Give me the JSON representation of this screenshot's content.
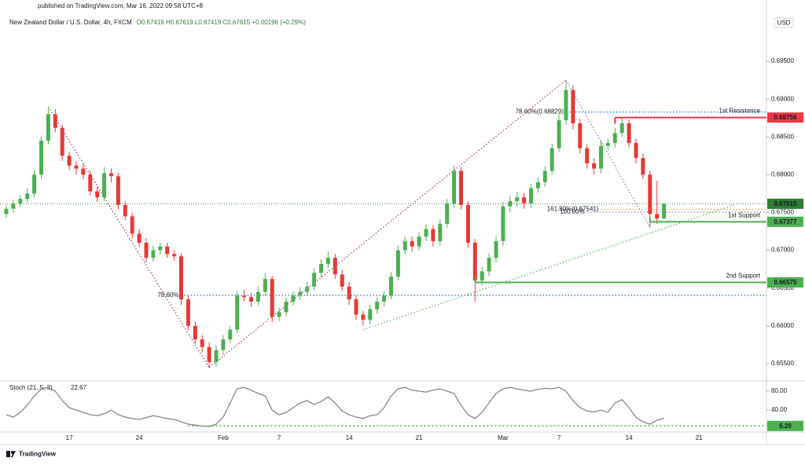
{
  "header": {
    "published": "published on TradingView.com, Mar 16, 2022 09:58 UTC+8"
  },
  "chart_data": {
    "type": "candlestick",
    "title": "New Zealand Dollar / U.S. Dollar, 4h, FXCM",
    "ohlc_summary": "O0.67419  H0.67619  L0.67419  C0.67615  +0.00196 (+0.29%)",
    "currency": "USD",
    "up_color": "#4caf50",
    "down_color": "#e53935",
    "categories": [
      null,
      null,
      null,
      null,
      null,
      null,
      null,
      null,
      null,
      "17",
      null,
      null,
      null,
      null,
      null,
      null,
      null,
      null,
      null,
      "24",
      null,
      null,
      null,
      null,
      null,
      null,
      null,
      null,
      null,
      null,
      null,
      "Feb",
      null,
      null,
      null,
      null,
      null,
      null,
      null,
      "7",
      null,
      null,
      null,
      null,
      null,
      null,
      null,
      null,
      null,
      "14",
      null,
      null,
      null,
      null,
      null,
      null,
      null,
      null,
      null,
      "21",
      null,
      null,
      null,
      null,
      null,
      null,
      null,
      null,
      null,
      null,
      null,
      "Mar",
      null,
      null,
      null,
      null,
      null,
      null,
      null,
      "7",
      null,
      null,
      null,
      null,
      null,
      null,
      null,
      null,
      null,
      "14",
      null,
      null,
      null,
      null,
      null,
      null,
      null,
      null,
      null,
      "21",
      null,
      null,
      null,
      null,
      null,
      null,
      null,
      null,
      null
    ],
    "open": [
      0.6748,
      0.6755,
      0.6762,
      0.6768,
      0.6775,
      0.68,
      0.6845,
      0.688,
      0.6862,
      0.6825,
      0.6812,
      0.6808,
      0.68,
      0.6778,
      0.677,
      0.6802,
      0.6798,
      0.676,
      0.6745,
      0.6722,
      0.671,
      0.669,
      0.67,
      0.6705,
      0.6695,
      0.6692,
      0.6635,
      0.66,
      0.6582,
      0.6572,
      0.6552,
      0.6568,
      0.6582,
      0.6595,
      0.664,
      0.6638,
      0.6632,
      0.6645,
      0.6662,
      0.6612,
      0.6618,
      0.6632,
      0.664,
      0.6645,
      0.6652,
      0.667,
      0.6682,
      0.669,
      0.6668,
      0.6652,
      0.6635,
      0.6615,
      0.6608,
      0.6622,
      0.6632,
      0.664,
      0.6665,
      0.67,
      0.6712,
      0.6705,
      0.6718,
      0.6728,
      0.6712,
      0.6735,
      0.6762,
      0.6805,
      0.676,
      0.671,
      0.666,
      0.6672,
      0.669,
      0.6712,
      0.6758,
      0.6765,
      0.677,
      0.6762,
      0.6782,
      0.679,
      0.6805,
      0.6835,
      0.6872,
      0.6912,
      0.6868,
      0.6835,
      0.6815,
      0.6808,
      0.6838,
      0.6842,
      0.6855,
      0.6868,
      0.6842,
      0.6822,
      0.68,
      0.6748,
      0.67419,
      null,
      null,
      null,
      null,
      null,
      null,
      null,
      null,
      null,
      null,
      null,
      null,
      null,
      null
    ],
    "high": [
      0.676,
      0.6767,
      0.6773,
      0.6782,
      0.6806,
      0.685,
      0.689,
      0.6887,
      0.6866,
      0.683,
      0.6818,
      0.6814,
      0.6805,
      0.6784,
      0.681,
      0.6808,
      0.6803,
      0.6765,
      0.675,
      0.6728,
      0.6716,
      0.6706,
      0.671,
      0.671,
      0.67,
      0.6696,
      0.664,
      0.6606,
      0.6588,
      0.6578,
      0.6574,
      0.6588,
      0.66,
      0.6646,
      0.6648,
      0.6644,
      0.6652,
      0.667,
      0.6666,
      0.6624,
      0.6638,
      0.6646,
      0.6651,
      0.6658,
      0.6676,
      0.6688,
      0.6698,
      0.6695,
      0.6674,
      0.6658,
      0.664,
      0.662,
      0.6628,
      0.6638,
      0.6646,
      0.6671,
      0.6706,
      0.6718,
      0.6718,
      0.6724,
      0.6734,
      0.6733,
      0.6741,
      0.6768,
      0.6812,
      0.681,
      0.6765,
      0.6715,
      0.6678,
      0.6696,
      0.6718,
      0.6764,
      0.6772,
      0.6777,
      0.6776,
      0.6788,
      0.6797,
      0.6811,
      0.6841,
      0.688,
      0.6925,
      0.6918,
      0.6874,
      0.684,
      0.6822,
      0.6845,
      0.6848,
      0.6862,
      0.6876,
      0.6873,
      0.6848,
      0.6828,
      0.6805,
      0.6792,
      0.67619,
      null,
      null,
      null,
      null,
      null,
      null,
      null,
      null,
      null,
      null,
      null,
      null,
      null,
      null
    ],
    "low": [
      0.6743,
      0.675,
      0.6757,
      0.6763,
      0.677,
      0.6795,
      0.684,
      0.6856,
      0.6818,
      0.6806,
      0.68,
      0.6794,
      0.6772,
      0.6764,
      0.6765,
      0.679,
      0.6754,
      0.674,
      0.6716,
      0.6704,
      0.6684,
      0.6685,
      0.6694,
      0.669,
      0.6686,
      0.6628,
      0.6594,
      0.6576,
      0.6565,
      0.6545,
      0.6546,
      0.6562,
      0.6577,
      0.659,
      0.6632,
      0.6625,
      0.6627,
      0.664,
      0.6605,
      0.6606,
      0.6613,
      0.6627,
      0.6634,
      0.664,
      0.6647,
      0.6664,
      0.6676,
      0.6662,
      0.6646,
      0.6628,
      0.6608,
      0.66,
      0.6602,
      0.6616,
      0.6626,
      0.6635,
      0.666,
      0.6694,
      0.6698,
      0.67,
      0.6712,
      0.6705,
      0.6706,
      0.673,
      0.6756,
      0.6754,
      0.6703,
      0.6632,
      0.6654,
      0.6666,
      0.6684,
      0.6706,
      0.675,
      0.6758,
      0.6755,
      0.6756,
      0.6776,
      0.6784,
      0.68,
      0.683,
      0.6866,
      0.686,
      0.6828,
      0.6808,
      0.68,
      0.6802,
      0.6832,
      0.6836,
      0.685,
      0.6836,
      0.6815,
      0.6794,
      0.673,
      0.6735,
      0.67419,
      null,
      null,
      null,
      null,
      null,
      null,
      null,
      null,
      null,
      null,
      null,
      null,
      null,
      null
    ],
    "close": [
      0.6755,
      0.6762,
      0.6768,
      0.6775,
      0.68,
      0.6845,
      0.688,
      0.6862,
      0.6825,
      0.6812,
      0.6808,
      0.68,
      0.6778,
      0.677,
      0.6802,
      0.6798,
      0.676,
      0.6745,
      0.6722,
      0.671,
      0.669,
      0.67,
      0.6705,
      0.6695,
      0.6692,
      0.6635,
      0.66,
      0.6582,
      0.6572,
      0.6552,
      0.6568,
      0.6582,
      0.6595,
      0.664,
      0.6638,
      0.6632,
      0.6645,
      0.6662,
      0.6612,
      0.6618,
      0.6632,
      0.664,
      0.6645,
      0.6652,
      0.667,
      0.6682,
      0.669,
      0.6668,
      0.6652,
      0.6635,
      0.6615,
      0.6608,
      0.6622,
      0.6632,
      0.664,
      0.6665,
      0.67,
      0.6712,
      0.6705,
      0.6718,
      0.6728,
      0.6712,
      0.6735,
      0.6762,
      0.6805,
      0.676,
      0.671,
      0.666,
      0.6672,
      0.669,
      0.6712,
      0.6758,
      0.6765,
      0.677,
      0.6762,
      0.6782,
      0.679,
      0.6805,
      0.6835,
      0.6872,
      0.6912,
      0.6868,
      0.6835,
      0.6815,
      0.6808,
      0.6838,
      0.6842,
      0.6855,
      0.6868,
      0.6842,
      0.6822,
      0.68,
      0.6748,
      0.6742,
      0.67615,
      null,
      null,
      null,
      null,
      null,
      null,
      null,
      null,
      null,
      null,
      null,
      null,
      null,
      null
    ],
    "ylim": [
      0.65271,
      0.70155
    ],
    "yticks": [
      {
        "value": 0.695,
        "label": "0.69500"
      },
      {
        "value": 0.69,
        "label": "0.69000"
      },
      {
        "value": 0.685,
        "label": "0.68500"
      },
      {
        "value": 0.68,
        "label": "0.68000"
      },
      {
        "value": 0.675,
        "label": "0.67500"
      },
      {
        "value": 0.67,
        "label": "0.67000"
      },
      {
        "value": 0.665,
        "label": "0.66500"
      },
      {
        "value": 0.66,
        "label": "0.66000"
      },
      {
        "value": 0.655,
        "label": "0.65500"
      }
    ],
    "last_price_color": "#2e7d32",
    "levels": [
      {
        "label": "1st Resistance",
        "value": 0.68756,
        "start": 87,
        "color": "#f23645"
      },
      {
        "label": "1st Support",
        "value": 0.67377,
        "start": 92,
        "color": "#4caf50"
      },
      {
        "label": "2nd Support",
        "value": 0.66575,
        "start": 67,
        "color": "#4caf50"
      }
    ],
    "fib_levels": [
      {
        "label": "78.60%(0.68829)",
        "value": 0.68829,
        "start": 80,
        "color": "#2962ff"
      },
      {
        "label": "161.80%(0.67541)",
        "value": 0.67541,
        "start": 85,
        "color": "#e0a030"
      },
      {
        "label": "100.00%",
        "value": 0.67506,
        "start": 83,
        "color": "#787b86"
      },
      {
        "label": "78.60%",
        "value": 0.66404,
        "start": 25,
        "color": "#2962ff"
      }
    ],
    "trend_lines": [
      {
        "from": [
          6,
          0.689
        ],
        "to": [
          29,
          0.6545
        ],
        "color": "#9c3b5e"
      },
      {
        "from": [
          29,
          0.6545
        ],
        "to": [
          80,
          0.6925
        ],
        "color": "#9c3b5e"
      },
      {
        "from": [
          80,
          0.6925
        ],
        "to": [
          92,
          0.673
        ],
        "color": "#787b86"
      },
      {
        "from": [
          51,
          0.6595
        ],
        "to": [
          104,
          0.676
        ],
        "color": "#4caf50"
      }
    ],
    "indicator": {
      "type": "line",
      "title": "Stoch (21, 5, 3)",
      "color": "#888888",
      "values": [
        30,
        25,
        35,
        50,
        70,
        85,
        88,
        80,
        60,
        45,
        40,
        35,
        30,
        28,
        32,
        40,
        30,
        25,
        22,
        20,
        24,
        28,
        25,
        22,
        20,
        15,
        10,
        8,
        6,
        5,
        10,
        25,
        55,
        85,
        88,
        82,
        75,
        70,
        40,
        30,
        35,
        45,
        55,
        60,
        52,
        58,
        68,
        55,
        38,
        30,
        25,
        22,
        28,
        30,
        45,
        70,
        85,
        88,
        82,
        80,
        78,
        82,
        85,
        80,
        75,
        50,
        30,
        22,
        35,
        55,
        75,
        85,
        88,
        85,
        82,
        80,
        84,
        86,
        85,
        88,
        80,
        60,
        45,
        38,
        36,
        40,
        35,
        55,
        62,
        45,
        25,
        15,
        10,
        18,
        22.67,
        null,
        null,
        null,
        null,
        null,
        null,
        null,
        null,
        null,
        null,
        null,
        null,
        null,
        null
      ],
      "ylim": [
        -6.7,
        98.3
      ],
      "yticks": [
        {
          "value": 80,
          "label": "80.00"
        },
        {
          "value": 40,
          "label": "40.00"
        }
      ],
      "level": {
        "value": 6.2,
        "value_label": "6.20",
        "start": 26,
        "color": "#4caf50"
      }
    }
  },
  "footer": {
    "brand": "TradingView"
  }
}
